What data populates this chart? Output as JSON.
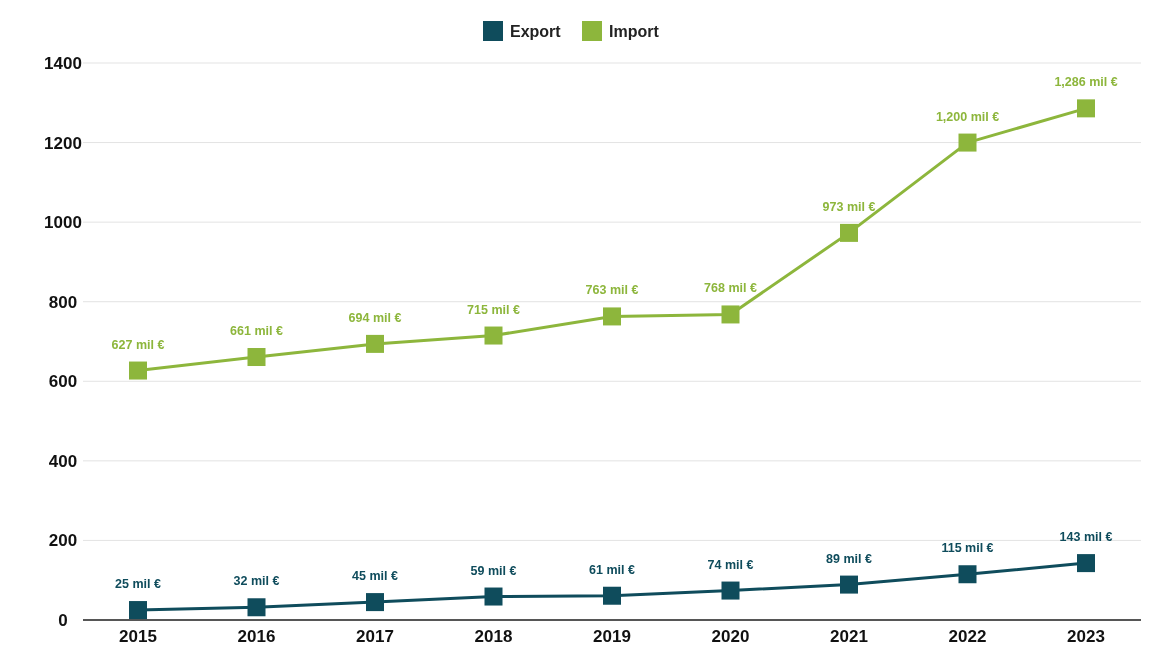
{
  "chart_data": {
    "type": "line",
    "categories": [
      "2015",
      "2016",
      "2017",
      "2018",
      "2019",
      "2020",
      "2021",
      "2022",
      "2023"
    ],
    "series": [
      {
        "name": "Export",
        "color": "#0f4c5c",
        "values": [
          25,
          32,
          45,
          59,
          61,
          74,
          89,
          115,
          143
        ],
        "value_labels": [
          "25 mil €",
          "32 mil €",
          "45 mil €",
          "59 mil €",
          "61 mil €",
          "74 mil €",
          "89 mil €",
          "115 mil €",
          "143 mil €"
        ]
      },
      {
        "name": "Import",
        "color": "#8db63c",
        "values": [
          627,
          661,
          694,
          715,
          763,
          768,
          973,
          1200,
          1286
        ],
        "value_labels": [
          "627 mil €",
          "661 mil €",
          "694 mil €",
          "715 mil €",
          "763 mil €",
          "768 mil €",
          "973 mil €",
          "1,200 mil €",
          "1,286 mil €"
        ]
      }
    ],
    "ylim": [
      0,
      1400
    ],
    "yticks": [
      0,
      200,
      400,
      600,
      800,
      1000,
      1200,
      1400
    ],
    "grid": "y",
    "legend": "top",
    "marker": "square",
    "line_style": "solid"
  }
}
